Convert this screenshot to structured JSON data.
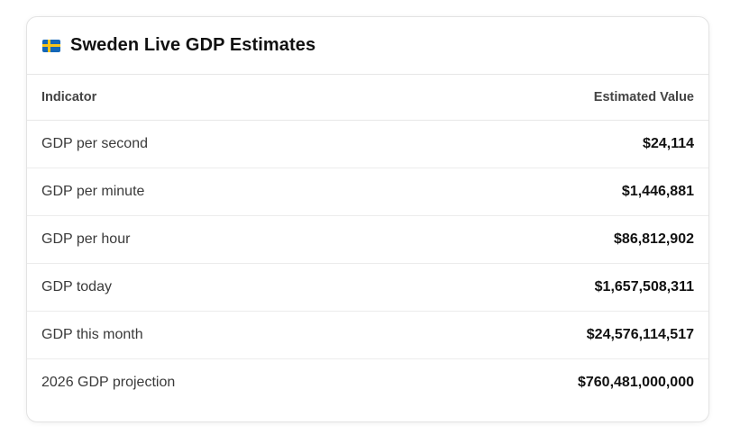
{
  "card": {
    "title": "Sweden Live GDP Estimates",
    "flag_icon": "sweden-flag-icon",
    "colors": {
      "flag_blue": "#1467b8",
      "flag_yellow": "#f6c41c"
    }
  },
  "table": {
    "headers": {
      "indicator": "Indicator",
      "value": "Estimated Value"
    },
    "rows": [
      {
        "indicator": "GDP per second",
        "value": "$24,114"
      },
      {
        "indicator": "GDP per minute",
        "value": "$1,446,881"
      },
      {
        "indicator": "GDP per hour",
        "value": "$86,812,902"
      },
      {
        "indicator": "GDP today",
        "value": "$1,657,508,311"
      },
      {
        "indicator": "GDP this month",
        "value": "$24,576,114,517"
      },
      {
        "indicator": "2026 GDP projection",
        "value": "$760,481,000,000"
      }
    ]
  }
}
